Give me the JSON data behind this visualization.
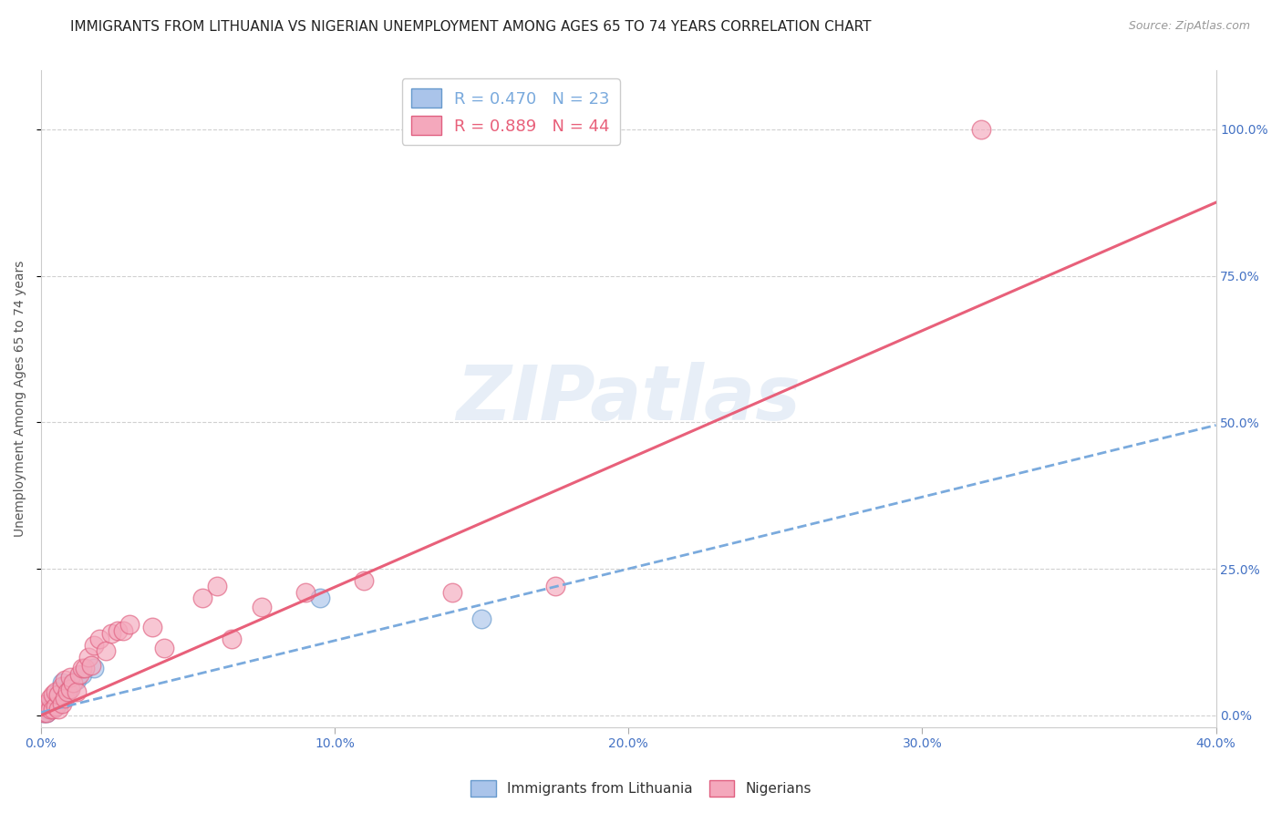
{
  "title": "IMMIGRANTS FROM LITHUANIA VS NIGERIAN UNEMPLOYMENT AMONG AGES 65 TO 74 YEARS CORRELATION CHART",
  "source": "Source: ZipAtlas.com",
  "xlabel_ticks": [
    "0.0%",
    "10.0%",
    "20.0%",
    "30.0%",
    "40.0%"
  ],
  "xlabel_tick_vals": [
    0.0,
    0.1,
    0.2,
    0.3,
    0.4
  ],
  "ylabel_left": "Unemployment Among Ages 65 to 74 years",
  "ylabel_right_ticks": [
    "0.0%",
    "25.0%",
    "50.0%",
    "75.0%",
    "100.0%"
  ],
  "ylabel_right_tick_vals": [
    0.0,
    0.25,
    0.5,
    0.75,
    1.0
  ],
  "watermark": "ZIPatlas",
  "blue_color": "#aac4ea",
  "pink_color": "#f4a8bc",
  "blue_edge_color": "#6699cc",
  "pink_edge_color": "#e06080",
  "blue_line_color": "#7aaadd",
  "pink_line_color": "#e8607a",
  "blue_scatter_x": [
    0.001,
    0.001,
    0.002,
    0.002,
    0.002,
    0.003,
    0.003,
    0.003,
    0.004,
    0.004,
    0.005,
    0.005,
    0.006,
    0.006,
    0.007,
    0.008,
    0.009,
    0.01,
    0.012,
    0.014,
    0.018,
    0.095,
    0.15
  ],
  "blue_scatter_y": [
    0.005,
    0.01,
    0.005,
    0.01,
    0.015,
    0.01,
    0.015,
    0.02,
    0.015,
    0.025,
    0.015,
    0.03,
    0.02,
    0.04,
    0.055,
    0.05,
    0.04,
    0.05,
    0.06,
    0.07,
    0.08,
    0.2,
    0.165
  ],
  "pink_scatter_x": [
    0.001,
    0.001,
    0.002,
    0.002,
    0.003,
    0.003,
    0.004,
    0.004,
    0.005,
    0.005,
    0.006,
    0.006,
    0.007,
    0.007,
    0.008,
    0.008,
    0.009,
    0.01,
    0.01,
    0.011,
    0.012,
    0.013,
    0.014,
    0.015,
    0.016,
    0.017,
    0.018,
    0.02,
    0.022,
    0.024,
    0.026,
    0.028,
    0.03,
    0.038,
    0.042,
    0.055,
    0.065,
    0.075,
    0.09,
    0.11,
    0.14,
    0.175,
    0.06,
    0.32
  ],
  "pink_scatter_y": [
    0.005,
    0.015,
    0.005,
    0.02,
    0.01,
    0.03,
    0.01,
    0.035,
    0.015,
    0.04,
    0.01,
    0.035,
    0.02,
    0.05,
    0.03,
    0.06,
    0.04,
    0.045,
    0.065,
    0.055,
    0.04,
    0.07,
    0.08,
    0.08,
    0.1,
    0.085,
    0.12,
    0.13,
    0.11,
    0.14,
    0.145,
    0.145,
    0.155,
    0.15,
    0.115,
    0.2,
    0.13,
    0.185,
    0.21,
    0.23,
    0.21,
    0.22,
    0.22,
    1.0
  ],
  "blue_trend_x": [
    0.0,
    0.4
  ],
  "blue_trend_y": [
    0.005,
    0.495
  ],
  "pink_trend_x": [
    0.0,
    0.4
  ],
  "pink_trend_y": [
    0.0,
    0.875
  ],
  "xlim": [
    0.0,
    0.4
  ],
  "ylim": [
    -0.02,
    1.1
  ],
  "grid_color": "#d0d0d0",
  "background_color": "#ffffff",
  "title_fontsize": 11,
  "axis_label_color": "#555555",
  "right_axis_color": "#4472c4",
  "tick_label_color_x": "#4472c4",
  "legend_label_blue": "R = 0.470   N = 23",
  "legend_label_pink": "R = 0.889   N = 44"
}
